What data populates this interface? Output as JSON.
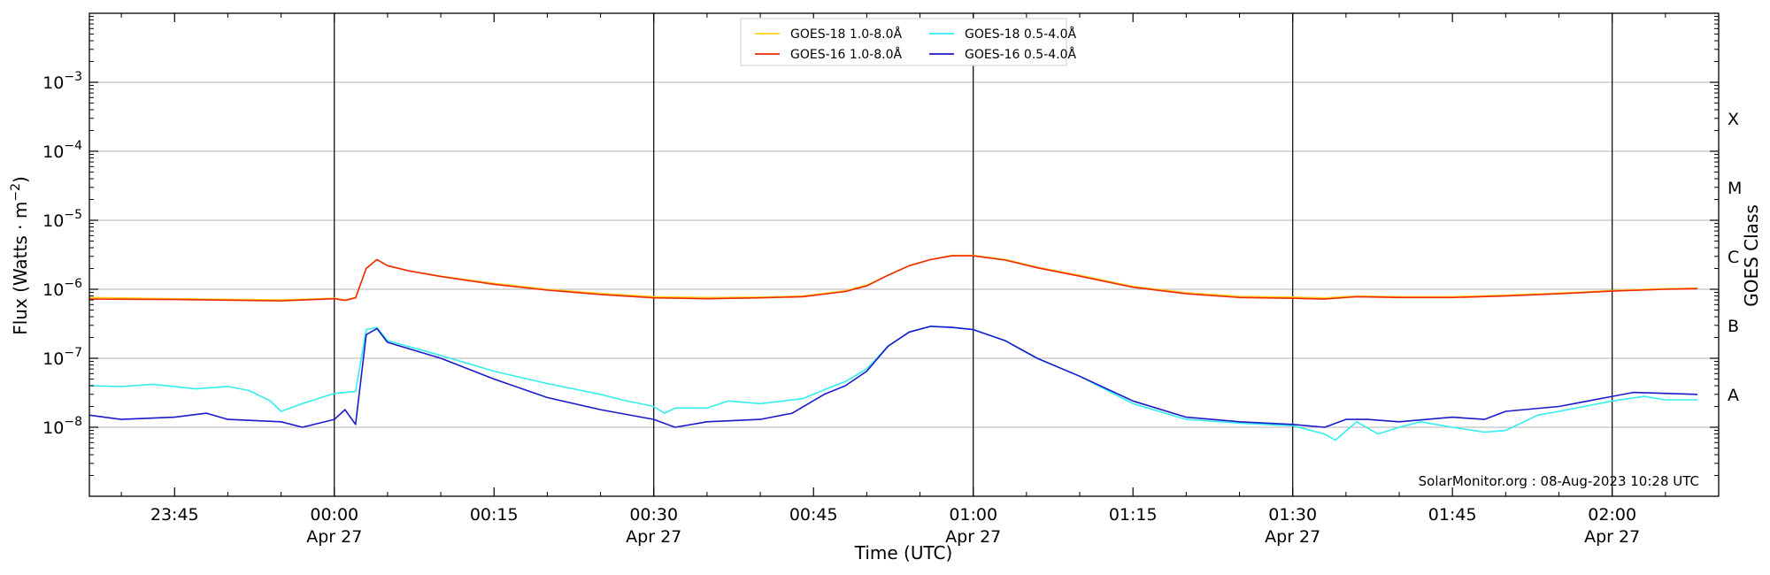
{
  "chart_data": {
    "type": "line",
    "title": "",
    "xlabel": "Time (UTC)",
    "ylabel": "Flux (Watts · m⁻²)",
    "ylabel_parts": {
      "text": "Flux (Watts · m",
      "sup": "−2",
      "close": ")"
    },
    "y2label": "GOES Class",
    "yscale": "log",
    "ylim": [
      1e-09,
      0.01
    ],
    "xlim": [
      "23:37",
      "02:10"
    ],
    "y_ticks": [
      {
        "value": 1e-08,
        "base": "10",
        "exp": "−8"
      },
      {
        "value": 1e-07,
        "base": "10",
        "exp": "−7"
      },
      {
        "value": 1e-06,
        "base": "10",
        "exp": "−6"
      },
      {
        "value": 1e-05,
        "base": "10",
        "exp": "−5"
      },
      {
        "value": 0.0001,
        "base": "10",
        "exp": "−4"
      },
      {
        "value": 0.001,
        "base": "10",
        "exp": "−3"
      }
    ],
    "x_ticks": [
      {
        "time": "23:45",
        "label": "23:45",
        "date": ""
      },
      {
        "time": "00:00",
        "label": "00:00",
        "date": "Apr 27"
      },
      {
        "time": "00:15",
        "label": "00:15",
        "date": ""
      },
      {
        "time": "00:30",
        "label": "00:30",
        "date": "Apr 27"
      },
      {
        "time": "00:45",
        "label": "00:45",
        "date": ""
      },
      {
        "time": "01:00",
        "label": "01:00",
        "date": "Apr 27"
      },
      {
        "time": "01:15",
        "label": "01:15",
        "date": ""
      },
      {
        "time": "01:30",
        "label": "01:30",
        "date": "Apr 27"
      },
      {
        "time": "01:45",
        "label": "01:45",
        "date": ""
      },
      {
        "time": "02:00",
        "label": "02:00",
        "date": "Apr 27"
      }
    ],
    "vertical_lines": [
      "00:00",
      "00:30",
      "01:00",
      "01:30",
      "02:00"
    ],
    "goes_classes": [
      {
        "label": "A",
        "flux": 3e-08
      },
      {
        "label": "B",
        "flux": 3e-07
      },
      {
        "label": "C",
        "flux": 3e-06
      },
      {
        "label": "M",
        "flux": 3e-05
      },
      {
        "label": "X",
        "flux": 0.0003
      }
    ],
    "grid": "horizontal at major y ticks",
    "legend_position": "top-center",
    "credit": "SolarMonitor.org : 08-Aug-2023 10:28 UTC",
    "series": [
      {
        "name": "GOES-18 1.0-8.0Å",
        "color": "#ffd21a",
        "points": [
          [
            "23:37",
            7.6e-07
          ],
          [
            "23:45",
            7.3e-07
          ],
          [
            "23:55",
            7e-07
          ],
          [
            "00:00",
            7.4e-07
          ],
          [
            "00:01",
            7e-07
          ],
          [
            "00:02",
            7.6e-07
          ],
          [
            "00:03",
            2e-06
          ],
          [
            "00:04",
            2.7e-06
          ],
          [
            "00:05",
            2.2e-06
          ],
          [
            "00:07",
            1.85e-06
          ],
          [
            "00:10",
            1.55e-06
          ],
          [
            "00:15",
            1.22e-06
          ],
          [
            "00:20",
            1e-06
          ],
          [
            "00:25",
            8.7e-07
          ],
          [
            "00:30",
            7.8e-07
          ],
          [
            "00:35",
            7.6e-07
          ],
          [
            "00:40",
            7.7e-07
          ],
          [
            "00:44",
            8e-07
          ],
          [
            "00:48",
            9.5e-07
          ],
          [
            "00:50",
            1.15e-06
          ],
          [
            "00:52",
            1.6e-06
          ],
          [
            "00:54",
            2.2e-06
          ],
          [
            "00:56",
            2.7e-06
          ],
          [
            "00:58",
            3.1e-06
          ],
          [
            "01:00",
            3.1e-06
          ],
          [
            "01:03",
            2.7e-06
          ],
          [
            "01:06",
            2.1e-06
          ],
          [
            "01:10",
            1.6e-06
          ],
          [
            "01:15",
            1.1e-06
          ],
          [
            "01:20",
            8.9e-07
          ],
          [
            "01:25",
            7.9e-07
          ],
          [
            "01:30",
            7.7e-07
          ],
          [
            "01:33",
            7.5e-07
          ],
          [
            "01:36",
            8e-07
          ],
          [
            "01:40",
            7.8e-07
          ],
          [
            "01:45",
            7.8e-07
          ],
          [
            "01:50",
            8.2e-07
          ],
          [
            "01:55",
            8.8e-07
          ],
          [
            "02:00",
            9.6e-07
          ],
          [
            "02:05",
            1.02e-06
          ],
          [
            "02:08",
            1.04e-06
          ]
        ]
      },
      {
        "name": "GOES-16 1.0-8.0Å",
        "color": "#ee2a0b",
        "points": [
          [
            "23:37",
            7.2e-07
          ],
          [
            "23:45",
            7.1e-07
          ],
          [
            "23:55",
            6.8e-07
          ],
          [
            "00:00",
            7.3e-07
          ],
          [
            "00:01",
            6.9e-07
          ],
          [
            "00:02",
            7.5e-07
          ],
          [
            "00:03",
            2e-06
          ],
          [
            "00:04",
            2.7e-06
          ],
          [
            "00:05",
            2.2e-06
          ],
          [
            "00:07",
            1.85e-06
          ],
          [
            "00:10",
            1.53e-06
          ],
          [
            "00:15",
            1.18e-06
          ],
          [
            "00:20",
            9.7e-07
          ],
          [
            "00:25",
            8.4e-07
          ],
          [
            "00:30",
            7.5e-07
          ],
          [
            "00:35",
            7.3e-07
          ],
          [
            "00:40",
            7.5e-07
          ],
          [
            "00:44",
            7.8e-07
          ],
          [
            "00:48",
            9.3e-07
          ],
          [
            "00:50",
            1.12e-06
          ],
          [
            "00:52",
            1.6e-06
          ],
          [
            "00:54",
            2.2e-06
          ],
          [
            "00:56",
            2.7e-06
          ],
          [
            "00:58",
            3.05e-06
          ],
          [
            "01:00",
            3.05e-06
          ],
          [
            "01:03",
            2.65e-06
          ],
          [
            "01:06",
            2.05e-06
          ],
          [
            "01:10",
            1.55e-06
          ],
          [
            "01:15",
            1.07e-06
          ],
          [
            "01:20",
            8.6e-07
          ],
          [
            "01:25",
            7.6e-07
          ],
          [
            "01:30",
            7.4e-07
          ],
          [
            "01:33",
            7.2e-07
          ],
          [
            "01:36",
            7.8e-07
          ],
          [
            "01:40",
            7.6e-07
          ],
          [
            "01:45",
            7.6e-07
          ],
          [
            "01:50",
            8e-07
          ],
          [
            "01:55",
            8.6e-07
          ],
          [
            "02:00",
            9.4e-07
          ],
          [
            "02:05",
            1e-06
          ],
          [
            "02:08",
            1.02e-06
          ]
        ]
      },
      {
        "name": "GOES-18 0.5-4.0Å",
        "color": "#33eeee",
        "points": [
          [
            "23:37",
            4e-08
          ],
          [
            "23:40",
            3.9e-08
          ],
          [
            "23:43",
            4.2e-08
          ],
          [
            "23:47",
            3.6e-08
          ],
          [
            "23:50",
            3.9e-08
          ],
          [
            "23:52",
            3.4e-08
          ],
          [
            "23:54",
            2.4e-08
          ],
          [
            "23:55",
            1.7e-08
          ],
          [
            "23:57",
            2.2e-08
          ],
          [
            "00:00",
            3.1e-08
          ],
          [
            "00:02",
            3.3e-08
          ],
          [
            "00:03",
            2.6e-07
          ],
          [
            "00:04",
            2.8e-07
          ],
          [
            "00:05",
            1.8e-07
          ],
          [
            "00:10",
            1.1e-07
          ],
          [
            "00:15",
            6.5e-08
          ],
          [
            "00:20",
            4.3e-08
          ],
          [
            "00:25",
            3e-08
          ],
          [
            "00:27",
            2.5e-08
          ],
          [
            "00:30",
            2e-08
          ],
          [
            "00:31",
            1.6e-08
          ],
          [
            "00:32",
            1.9e-08
          ],
          [
            "00:35",
            1.9e-08
          ],
          [
            "00:37",
            2.4e-08
          ],
          [
            "00:40",
            2.2e-08
          ],
          [
            "00:44",
            2.6e-08
          ],
          [
            "00:46",
            3.5e-08
          ],
          [
            "00:48",
            4.6e-08
          ],
          [
            "00:50",
            7e-08
          ],
          [
            "00:52",
            1.5e-07
          ],
          [
            "00:54",
            2.4e-07
          ],
          [
            "00:56",
            2.9e-07
          ],
          [
            "00:58",
            2.8e-07
          ],
          [
            "01:00",
            2.6e-07
          ],
          [
            "01:03",
            1.8e-07
          ],
          [
            "01:06",
            1e-07
          ],
          [
            "01:10",
            5.5e-08
          ],
          [
            "01:15",
            2.2e-08
          ],
          [
            "01:20",
            1.3e-08
          ],
          [
            "01:25",
            1.15e-08
          ],
          [
            "01:30",
            1.05e-08
          ],
          [
            "01:33",
            8e-09
          ],
          [
            "01:34",
            6.5e-09
          ],
          [
            "01:36",
            1.2e-08
          ],
          [
            "01:38",
            8e-09
          ],
          [
            "01:40",
            1e-08
          ],
          [
            "01:42",
            1.2e-08
          ],
          [
            "01:45",
            1e-08
          ],
          [
            "01:48",
            8.5e-09
          ],
          [
            "01:50",
            9e-09
          ],
          [
            "01:53",
            1.5e-08
          ],
          [
            "01:55",
            1.7e-08
          ],
          [
            "02:00",
            2.4e-08
          ],
          [
            "02:03",
            2.8e-08
          ],
          [
            "02:05",
            2.5e-08
          ],
          [
            "02:08",
            2.5e-08
          ]
        ]
      },
      {
        "name": "GOES-16 0.5-4.0Å",
        "color": "#1a1acc",
        "points": [
          [
            "23:37",
            1.5e-08
          ],
          [
            "23:40",
            1.3e-08
          ],
          [
            "23:45",
            1.4e-08
          ],
          [
            "23:48",
            1.6e-08
          ],
          [
            "23:50",
            1.3e-08
          ],
          [
            "23:55",
            1.2e-08
          ],
          [
            "23:57",
            1e-08
          ],
          [
            "00:00",
            1.3e-08
          ],
          [
            "00:01",
            1.8e-08
          ],
          [
            "00:02",
            1.1e-08
          ],
          [
            "00:03",
            2.2e-07
          ],
          [
            "00:04",
            2.7e-07
          ],
          [
            "00:05",
            1.7e-07
          ],
          [
            "00:10",
            1e-07
          ],
          [
            "00:15",
            5e-08
          ],
          [
            "00:20",
            2.7e-08
          ],
          [
            "00:25",
            1.8e-08
          ],
          [
            "00:30",
            1.3e-08
          ],
          [
            "00:32",
            1e-08
          ],
          [
            "00:35",
            1.2e-08
          ],
          [
            "00:40",
            1.3e-08
          ],
          [
            "00:43",
            1.6e-08
          ],
          [
            "00:46",
            3e-08
          ],
          [
            "00:48",
            4e-08
          ],
          [
            "00:50",
            6.5e-08
          ],
          [
            "00:52",
            1.5e-07
          ],
          [
            "00:54",
            2.4e-07
          ],
          [
            "00:56",
            2.9e-07
          ],
          [
            "00:58",
            2.8e-07
          ],
          [
            "01:00",
            2.6e-07
          ],
          [
            "01:03",
            1.8e-07
          ],
          [
            "01:06",
            1e-07
          ],
          [
            "01:10",
            5.5e-08
          ],
          [
            "01:15",
            2.4e-08
          ],
          [
            "01:20",
            1.4e-08
          ],
          [
            "01:25",
            1.2e-08
          ],
          [
            "01:30",
            1.1e-08
          ],
          [
            "01:33",
            1e-08
          ],
          [
            "01:35",
            1.3e-08
          ],
          [
            "01:37",
            1.3e-08
          ],
          [
            "01:40",
            1.2e-08
          ],
          [
            "01:45",
            1.4e-08
          ],
          [
            "01:48",
            1.3e-08
          ],
          [
            "01:50",
            1.7e-08
          ],
          [
            "01:55",
            2e-08
          ],
          [
            "02:00",
            2.8e-08
          ],
          [
            "02:02",
            3.2e-08
          ],
          [
            "02:05",
            3.1e-08
          ],
          [
            "02:08",
            3e-08
          ]
        ]
      }
    ]
  }
}
